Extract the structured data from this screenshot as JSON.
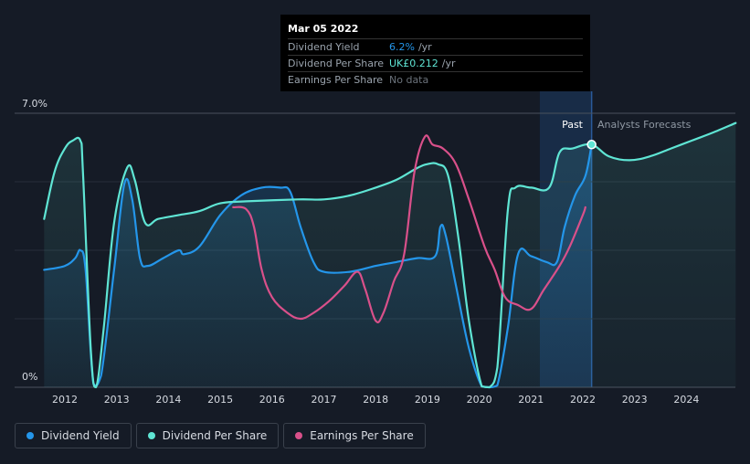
{
  "tooltip": {
    "date": "Mar 05 2022",
    "rows": [
      {
        "name": "Dividend Yield",
        "value": "6.2%",
        "unit": "/yr"
      },
      {
        "name": "Dividend Per Share",
        "value": "UK£0.212",
        "unit": "/yr"
      },
      {
        "name": "Earnings Per Share",
        "value": "No data",
        "unit": ""
      }
    ]
  },
  "labels": {
    "past": "Past",
    "forecast": "Analysts Forecasts"
  },
  "legend": [
    {
      "label": "Dividend Yield",
      "color": "#2496ea"
    },
    {
      "label": "Dividend Per Share",
      "color": "#5fe5d4"
    },
    {
      "label": "Earnings Per Share",
      "color": "#d9508a"
    }
  ],
  "colors": {
    "background": "#151b26",
    "past_shade": "#1c3a63",
    "dividend_yield": "#2496ea",
    "dividend_per_share": "#5fe5d4",
    "earnings_per_share": "#d9508a"
  },
  "chart_data": {
    "type": "line",
    "x_ticks": [
      "2012",
      "2013",
      "2014",
      "2015",
      "2016",
      "2017",
      "2018",
      "2019",
      "2020",
      "2021",
      "2022",
      "2023",
      "2024"
    ],
    "y_ticks": [
      "0%",
      "7.0%"
    ],
    "ylim": [
      0,
      7.0
    ],
    "xlim": [
      2011.55,
      2024.97
    ],
    "past_end": 2022.17,
    "series": [
      {
        "name": "Dividend Yield",
        "points": [
          [
            2011.6,
            3.0
          ],
          [
            2012.0,
            3.1
          ],
          [
            2012.2,
            3.3
          ],
          [
            2012.3,
            3.5
          ],
          [
            2012.4,
            3.0
          ],
          [
            2012.55,
            0.1
          ],
          [
            2012.7,
            0.3
          ],
          [
            2012.95,
            3.0
          ],
          [
            2013.15,
            5.2
          ],
          [
            2013.3,
            4.8
          ],
          [
            2013.45,
            3.3
          ],
          [
            2013.6,
            3.1
          ],
          [
            2013.9,
            3.3
          ],
          [
            2014.2,
            3.5
          ],
          [
            2014.3,
            3.4
          ],
          [
            2014.6,
            3.6
          ],
          [
            2015.0,
            4.4
          ],
          [
            2015.4,
            4.9
          ],
          [
            2015.8,
            5.1
          ],
          [
            2016.15,
            5.1
          ],
          [
            2016.35,
            5.0
          ],
          [
            2016.55,
            4.1
          ],
          [
            2016.8,
            3.2
          ],
          [
            2017.0,
            2.95
          ],
          [
            2017.5,
            2.95
          ],
          [
            2018.0,
            3.1
          ],
          [
            2018.4,
            3.2
          ],
          [
            2018.8,
            3.3
          ],
          [
            2019.15,
            3.35
          ],
          [
            2019.25,
            4.1
          ],
          [
            2019.35,
            3.9
          ],
          [
            2019.55,
            2.6
          ],
          [
            2019.8,
            1.0
          ],
          [
            2020.05,
            0.02
          ],
          [
            2020.2,
            0.0
          ],
          [
            2020.35,
            0.05
          ],
          [
            2020.55,
            1.5
          ],
          [
            2020.75,
            3.4
          ],
          [
            2021.0,
            3.35
          ],
          [
            2021.3,
            3.2
          ],
          [
            2021.5,
            3.2
          ],
          [
            2021.65,
            4.1
          ],
          [
            2021.85,
            4.9
          ],
          [
            2022.05,
            5.4
          ],
          [
            2022.17,
            6.2
          ]
        ]
      },
      {
        "name": "Dividend Per Share",
        "points": [
          [
            2011.6,
            4.3
          ],
          [
            2011.8,
            5.5
          ],
          [
            2012.0,
            6.1
          ],
          [
            2012.15,
            6.3
          ],
          [
            2012.3,
            6.3
          ],
          [
            2012.35,
            5.5
          ],
          [
            2012.5,
            1.0
          ],
          [
            2012.6,
            0.0
          ],
          [
            2012.75,
            1.5
          ],
          [
            2012.95,
            4.2
          ],
          [
            2013.2,
            5.6
          ],
          [
            2013.35,
            5.3
          ],
          [
            2013.55,
            4.2
          ],
          [
            2013.8,
            4.3
          ],
          [
            2014.2,
            4.4
          ],
          [
            2014.6,
            4.5
          ],
          [
            2015.0,
            4.7
          ],
          [
            2015.5,
            4.75
          ],
          [
            2016.5,
            4.8
          ],
          [
            2017.0,
            4.8
          ],
          [
            2017.5,
            4.9
          ],
          [
            2018.0,
            5.1
          ],
          [
            2018.4,
            5.3
          ],
          [
            2018.8,
            5.6
          ],
          [
            2019.0,
            5.7
          ],
          [
            2019.2,
            5.7
          ],
          [
            2019.4,
            5.4
          ],
          [
            2019.6,
            3.8
          ],
          [
            2019.8,
            1.7
          ],
          [
            2020.05,
            0.02
          ],
          [
            2020.2,
            0.0
          ],
          [
            2020.35,
            0.5
          ],
          [
            2020.55,
            4.5
          ],
          [
            2020.7,
            5.1
          ],
          [
            2021.0,
            5.1
          ],
          [
            2021.35,
            5.1
          ],
          [
            2021.55,
            6.0
          ],
          [
            2021.8,
            6.1
          ],
          [
            2022.17,
            6.2
          ],
          [
            2022.5,
            5.9
          ],
          [
            2022.9,
            5.8
          ],
          [
            2023.3,
            5.9
          ],
          [
            2023.7,
            6.1
          ],
          [
            2024.1,
            6.3
          ],
          [
            2024.5,
            6.5
          ],
          [
            2024.95,
            6.75
          ]
        ]
      },
      {
        "name": "Earnings Per Share",
        "points": [
          [
            2015.25,
            4.6
          ],
          [
            2015.5,
            4.55
          ],
          [
            2015.65,
            4.1
          ],
          [
            2015.8,
            3.0
          ],
          [
            2016.0,
            2.3
          ],
          [
            2016.3,
            1.9
          ],
          [
            2016.55,
            1.75
          ],
          [
            2016.8,
            1.9
          ],
          [
            2017.1,
            2.2
          ],
          [
            2017.4,
            2.6
          ],
          [
            2017.65,
            2.95
          ],
          [
            2017.8,
            2.5
          ],
          [
            2018.0,
            1.7
          ],
          [
            2018.15,
            1.9
          ],
          [
            2018.35,
            2.7
          ],
          [
            2018.55,
            3.4
          ],
          [
            2018.75,
            5.5
          ],
          [
            2018.95,
            6.4
          ],
          [
            2019.1,
            6.2
          ],
          [
            2019.3,
            6.1
          ],
          [
            2019.55,
            5.7
          ],
          [
            2019.8,
            4.8
          ],
          [
            2020.1,
            3.6
          ],
          [
            2020.3,
            3.0
          ],
          [
            2020.5,
            2.3
          ],
          [
            2020.75,
            2.1
          ],
          [
            2021.0,
            2.0
          ],
          [
            2021.25,
            2.5
          ],
          [
            2021.55,
            3.1
          ],
          [
            2021.75,
            3.6
          ],
          [
            2022.0,
            4.4
          ],
          [
            2022.05,
            4.6
          ]
        ]
      }
    ]
  }
}
